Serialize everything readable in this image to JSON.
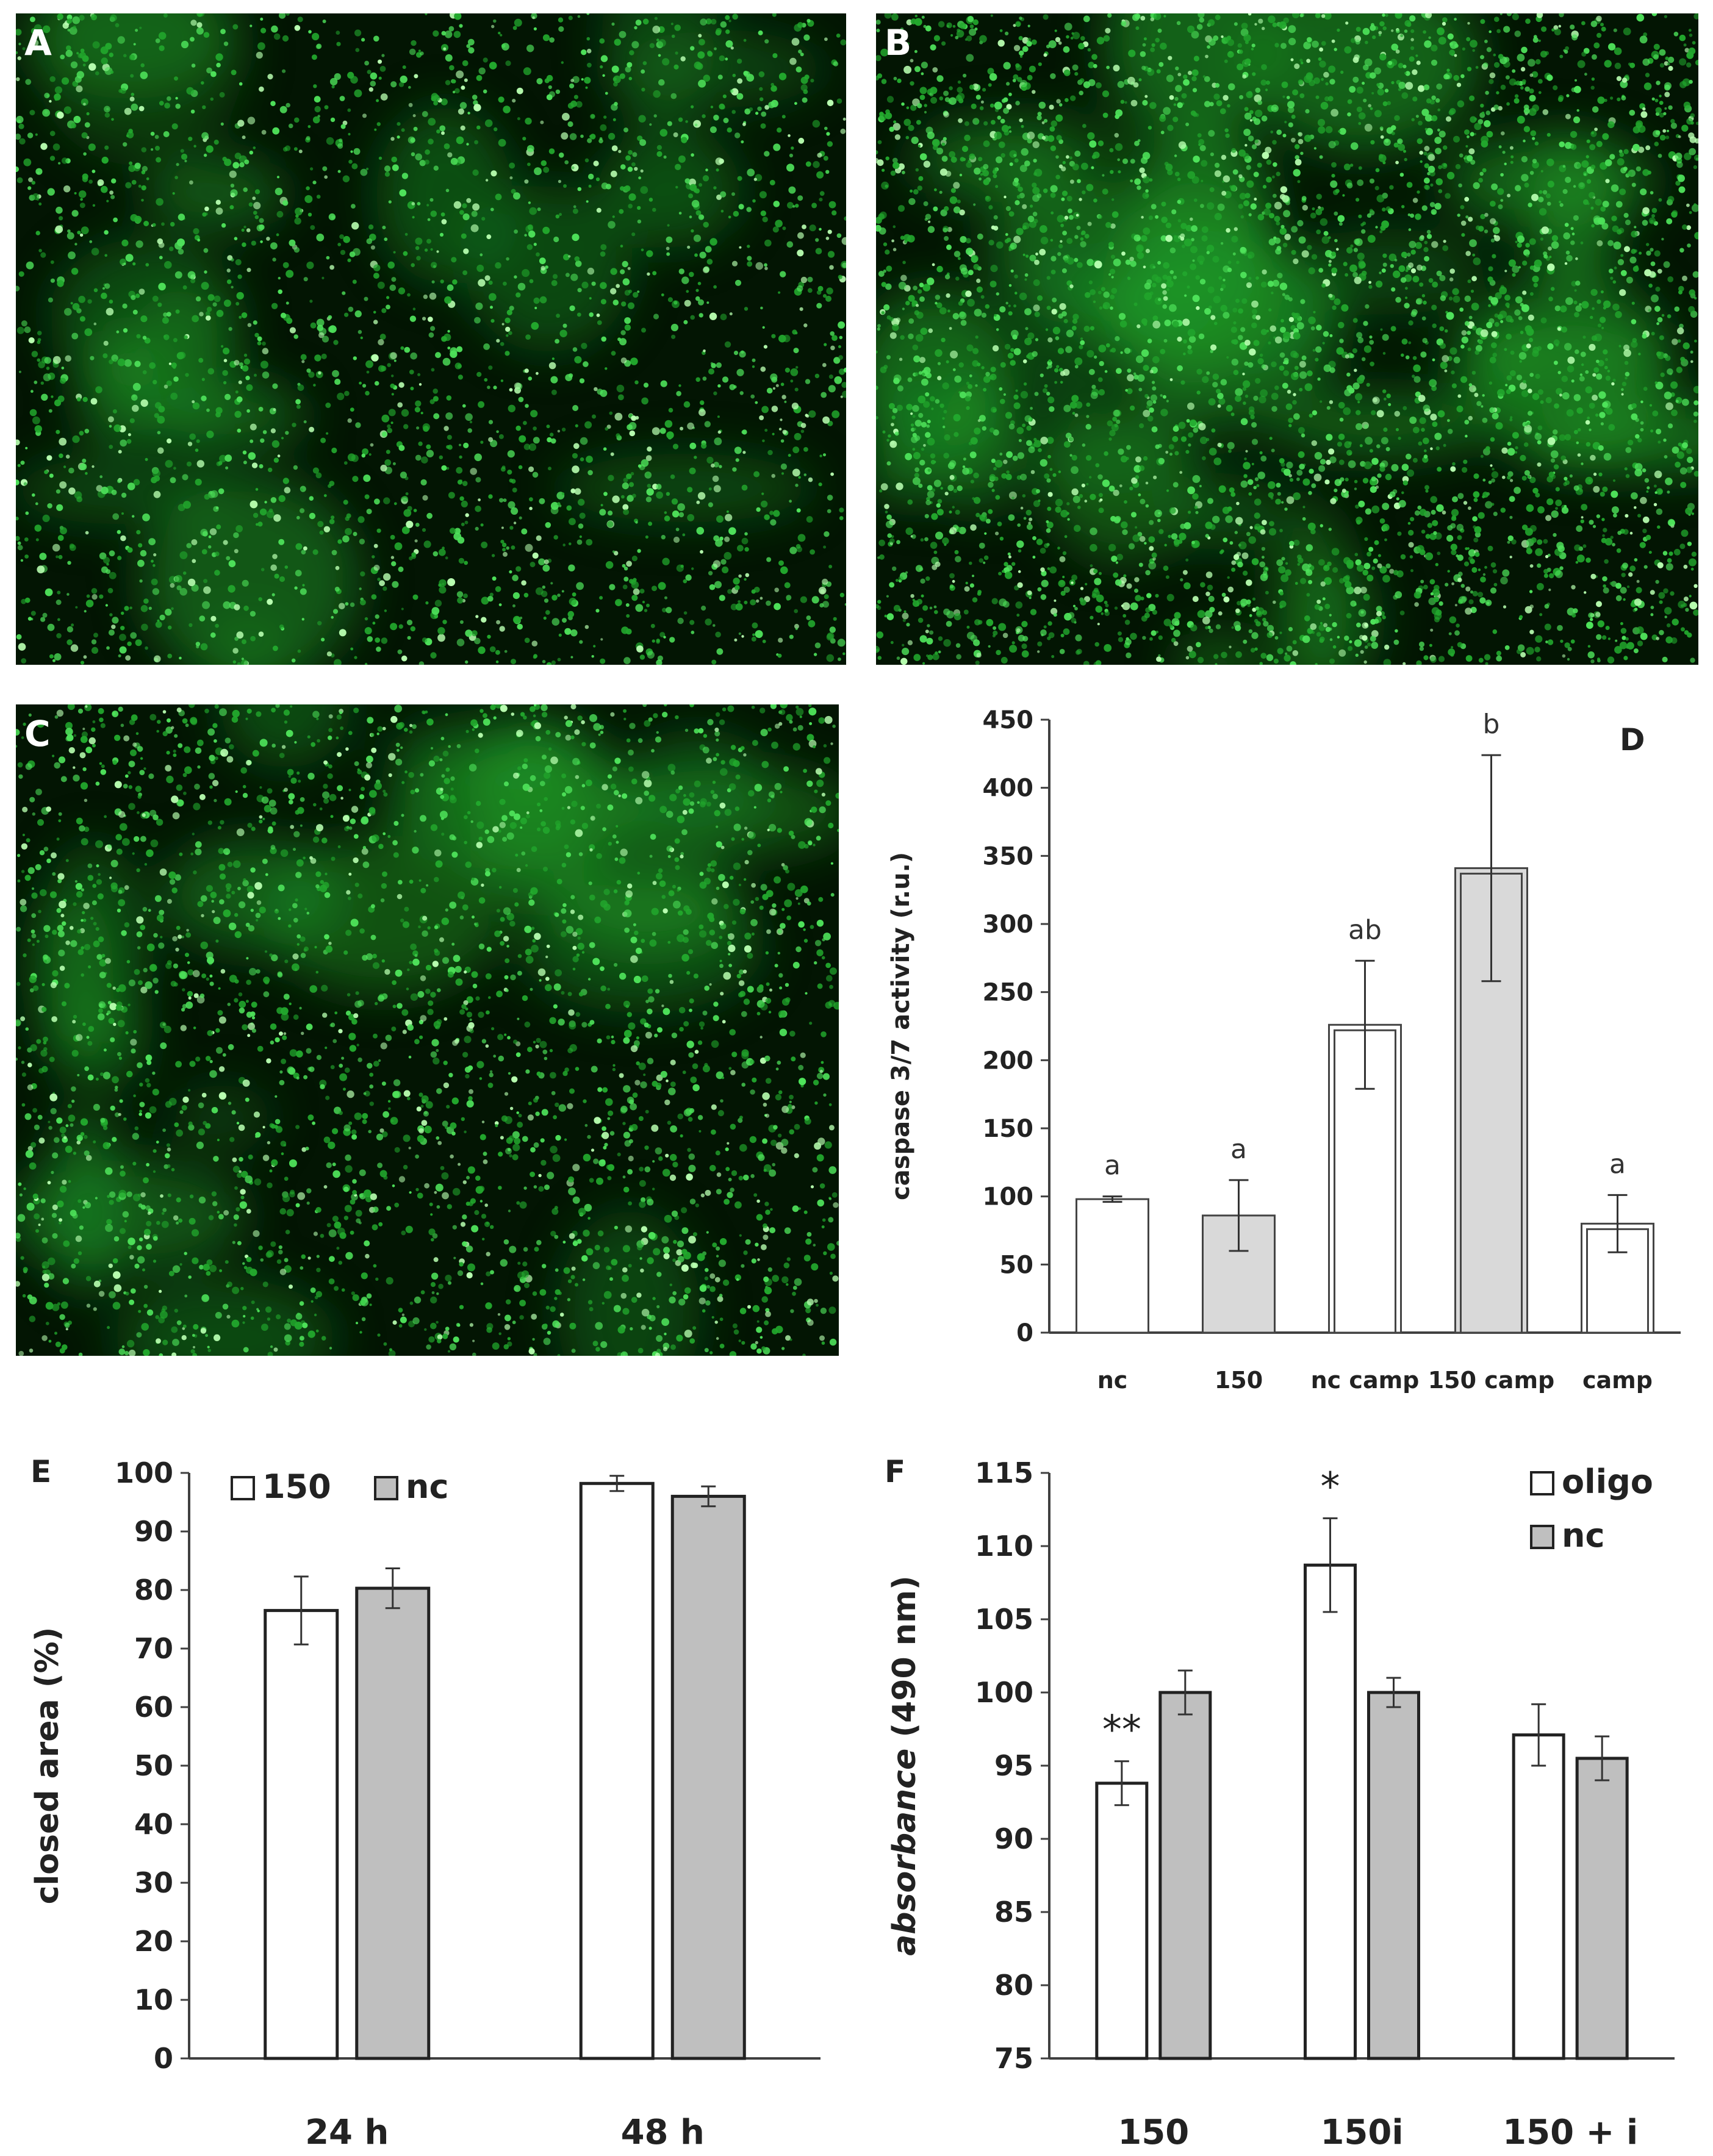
{
  "panels": {
    "A": {
      "label": "A"
    },
    "B": {
      "label": "B"
    },
    "C": {
      "label": "C"
    }
  },
  "colors": {
    "fluorescence_green": "#2fd43a",
    "background_dark": "#031503",
    "bar_white": "#ffffff",
    "bar_light_gray": "#d9d9d9",
    "bar_gray": "#bfbfbf",
    "axis": "#333333"
  },
  "chart_data": [
    {
      "panel": "D",
      "type": "bar",
      "ylabel": "caspase  3/7 activity (r.u.)",
      "xlabel": "",
      "ylim": [
        0,
        450
      ],
      "yticks": [
        0,
        50,
        100,
        150,
        200,
        250,
        300,
        350,
        400,
        450
      ],
      "categories": [
        "nc",
        "150",
        "nc camp",
        "150 camp",
        "camp"
      ],
      "values": [
        98,
        86,
        226,
        341,
        80
      ],
      "errors": [
        2,
        26,
        47,
        83,
        21
      ],
      "significance": [
        "a",
        "a",
        "ab",
        "b",
        "a"
      ],
      "fills": [
        "#ffffff",
        "#d9d9d9",
        "#ffffff",
        "#d9d9d9",
        "#ffffff"
      ],
      "double_outline": [
        false,
        false,
        true,
        true,
        true
      ],
      "grid": false
    },
    {
      "panel": "E",
      "type": "bar",
      "ylabel": "closed area  (%)",
      "xlabel": "",
      "ylim": [
        0,
        100
      ],
      "yticks": [
        0,
        10,
        20,
        30,
        40,
        50,
        60,
        70,
        80,
        90,
        100
      ],
      "categories": [
        "24 h",
        "48 h"
      ],
      "series": [
        {
          "name": "150",
          "values": [
            76.5,
            98.2
          ],
          "errors": [
            5.8,
            1.3
          ],
          "fill": "#ffffff"
        },
        {
          "name": "nc",
          "values": [
            80.3,
            96.0
          ],
          "errors": [
            3.4,
            1.7
          ],
          "fill": "#bfbfbf"
        }
      ],
      "legend": "top-left",
      "grid": false
    },
    {
      "panel": "F",
      "type": "bar",
      "ylabel_italic": "absorbance",
      "ylabel_rest": "(490 nm)",
      "xlabel": "",
      "ylim": [
        75,
        115
      ],
      "yticks": [
        75,
        80,
        85,
        90,
        95,
        100,
        105,
        110,
        115
      ],
      "categories": [
        "150",
        "150i",
        "150 + i"
      ],
      "series": [
        {
          "name": "oligo",
          "values": [
            93.8,
            108.7,
            97.1
          ],
          "errors": [
            1.5,
            3.2,
            2.1
          ],
          "fill": "#ffffff"
        },
        {
          "name": "nc",
          "values": [
            100.0,
            100.0,
            95.5
          ],
          "errors": [
            1.5,
            1.0,
            1.5
          ],
          "fill": "#bfbfbf"
        }
      ],
      "annotations": [
        {
          "category": "150",
          "series": "oligo",
          "text": "**"
        },
        {
          "category": "150i",
          "series": "oligo",
          "text": "*"
        }
      ],
      "legend": "top-right",
      "grid": false
    }
  ]
}
